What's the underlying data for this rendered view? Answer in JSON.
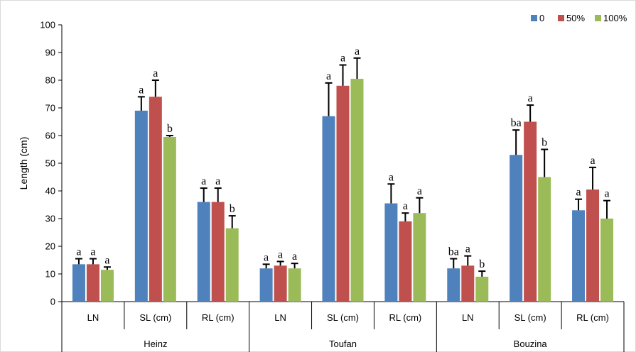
{
  "chart_data": {
    "type": "bar",
    "title": "",
    "ylabel": "Length (cm)",
    "xlabel": "",
    "ylim": [
      0,
      100
    ],
    "yticks": [
      0,
      10,
      20,
      30,
      40,
      50,
      60,
      70,
      80,
      90,
      100
    ],
    "grid": false,
    "legend_position": "top-right",
    "groups": [
      "Heinz",
      "Toufan",
      "Bouzina"
    ],
    "subcategories": [
      "LN",
      "SL (cm)",
      "RL (cm)"
    ],
    "series": [
      {
        "name": "0",
        "color": "#4f81bd",
        "values": [
          13.5,
          69,
          36,
          12,
          67,
          35.5,
          12,
          53,
          33
        ],
        "errors": [
          2.0,
          5.0,
          5.0,
          1.5,
          12.0,
          7.0,
          3.5,
          9.0,
          4.0
        ],
        "labels": [
          "a",
          "a",
          "a",
          "a",
          "a",
          "a",
          "ba",
          "ba",
          "a"
        ]
      },
      {
        "name": "50%",
        "color": "#c0504d",
        "values": [
          13.5,
          74,
          36,
          13,
          78,
          29,
          13,
          65,
          40.5
        ],
        "errors": [
          2.0,
          6.0,
          5.0,
          1.5,
          7.5,
          3.0,
          3.5,
          6.0,
          8.0
        ],
        "labels": [
          "a",
          "a",
          "a",
          "a",
          "a",
          "a",
          "a",
          "a",
          "a"
        ]
      },
      {
        "name": "100%",
        "color": "#9bbb59",
        "values": [
          11.5,
          59.5,
          26.5,
          12,
          80.5,
          32,
          9,
          45,
          30
        ],
        "errors": [
          1.0,
          0.5,
          4.5,
          1.8,
          7.5,
          5.5,
          2.0,
          10.0,
          6.5
        ],
        "labels": [
          "a",
          "b",
          "b",
          "a",
          "a",
          "a",
          "b",
          "b",
          "a"
        ]
      }
    ]
  }
}
